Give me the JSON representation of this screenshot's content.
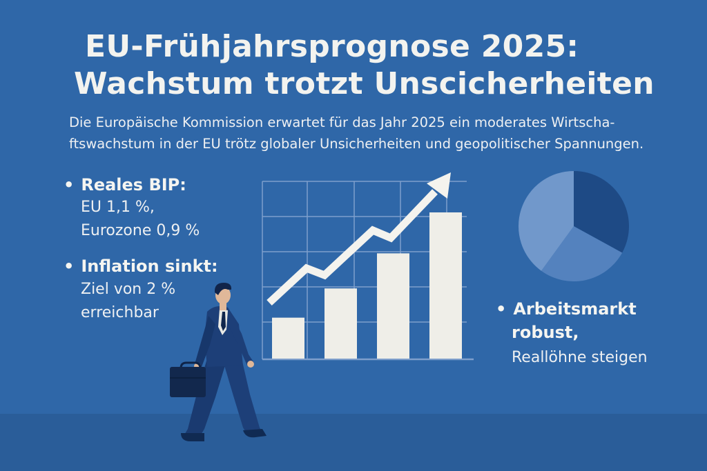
{
  "header": {
    "title_line1": "EU-Frühjahrsprognose 2025:",
    "title_line2": "Wachstum trotzt Unscicherheiten"
  },
  "intro": {
    "line1": "Die Europäische Kommission erwartet für das Jahr 2025 ein moderates Wirtscha-",
    "line2": "ftswachstum in der EU trötz globaler Unsicherheiten und geopolitischer Spannungen."
  },
  "bullets": {
    "bip": {
      "heading": "Reales BIP:",
      "line1": "EU  1,1 %,",
      "line2": "Eurozone   0,9 %"
    },
    "inflation": {
      "heading": "Inflation sinkt:",
      "line1": "Ziel von 2 %",
      "line2": "erreichbar"
    },
    "arbeitsmarkt": {
      "heading1": "Arbeitsmarkt",
      "heading2": "robust,",
      "line1": "Reallöhne steigen"
    }
  },
  "bullet_glyph": "•",
  "illustration": {
    "bar_levels": [
      0.28,
      0.48,
      0.72,
      1.0
    ],
    "pie_slices": [
      0.33,
      0.27,
      0.4
    ]
  },
  "colors": {
    "background": "#2f67a8",
    "floor": "#2a5d99",
    "bars": "#efeee8",
    "grid": "#7f9fcc",
    "pie_dark": "#1e4a85",
    "pie_mid": "#5482be",
    "pie_light": "#7198cb",
    "person_suit": "#1d3f78"
  },
  "icons": [
    "growth-arrow-icon",
    "pie-chart-icon",
    "businessman-icon",
    "briefcase-icon"
  ]
}
